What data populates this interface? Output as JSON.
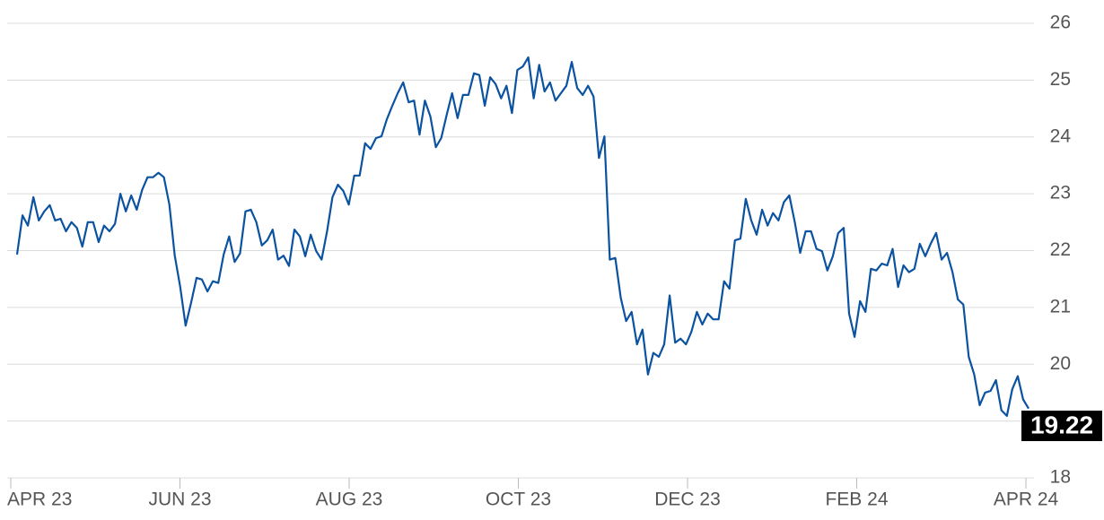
{
  "chart_data": {
    "type": "line",
    "color": "#0b52a0",
    "x_labels": [
      "APR 23",
      "JUN 23",
      "AUG 23",
      "OCT 23",
      "DEC 23",
      "FEB 24",
      "APR 24"
    ],
    "values": [
      21.93,
      22.62,
      22.44,
      22.94,
      22.53,
      22.69,
      22.8,
      22.53,
      22.56,
      22.34,
      22.5,
      22.4,
      22.07,
      22.5,
      22.5,
      22.15,
      22.44,
      22.34,
      22.47,
      23.0,
      22.69,
      22.97,
      22.72,
      23.07,
      23.29,
      23.29,
      23.37,
      23.29,
      22.81,
      21.91,
      21.36,
      20.68,
      21.08,
      21.52,
      21.49,
      21.28,
      21.46,
      21.43,
      21.93,
      22.25,
      21.8,
      21.95,
      22.69,
      22.72,
      22.5,
      22.09,
      22.18,
      22.37,
      21.84,
      21.91,
      21.73,
      22.37,
      22.25,
      21.9,
      22.28,
      21.99,
      21.84,
      22.34,
      22.94,
      23.16,
      23.05,
      22.81,
      23.32,
      23.32,
      23.89,
      23.79,
      23.98,
      24.01,
      24.31,
      24.55,
      24.77,
      24.96,
      24.61,
      24.64,
      24.04,
      24.64,
      24.36,
      23.82,
      23.98,
      24.39,
      24.77,
      24.33,
      24.74,
      24.74,
      25.12,
      25.09,
      24.55,
      25.05,
      24.93,
      24.68,
      24.9,
      24.42,
      25.18,
      25.24,
      25.4,
      24.68,
      25.27,
      24.8,
      24.96,
      24.64,
      24.77,
      24.9,
      25.32,
      24.86,
      24.74,
      24.9,
      24.71,
      23.63,
      24.01,
      21.84,
      21.87,
      21.17,
      20.76,
      20.92,
      20.35,
      20.61,
      19.82,
      20.2,
      20.13,
      20.35,
      21.21,
      20.38,
      20.45,
      20.35,
      20.57,
      20.92,
      20.7,
      20.89,
      20.79,
      20.79,
      21.46,
      21.33,
      22.18,
      22.21,
      22.91,
      22.53,
      22.28,
      22.72,
      22.44,
      22.66,
      22.53,
      22.85,
      22.97,
      22.5,
      21.96,
      22.34,
      22.34,
      22.03,
      21.99,
      21.65,
      21.9,
      22.31,
      22.4,
      20.89,
      20.48,
      21.11,
      20.92,
      21.68,
      21.65,
      21.77,
      21.74,
      22.03,
      21.36,
      21.74,
      21.62,
      21.68,
      22.12,
      21.9,
      22.12,
      22.31,
      21.84,
      21.96,
      21.62,
      21.14,
      21.05,
      20.13,
      19.82,
      19.28,
      19.5,
      19.53,
      19.72,
      19.19,
      19.09,
      19.56,
      19.79,
      19.38,
      19.22
    ],
    "ylim": [
      18,
      26
    ],
    "yticks": [
      18,
      19,
      20,
      21,
      22,
      23,
      24,
      25,
      26
    ],
    "grid": true
  }
}
